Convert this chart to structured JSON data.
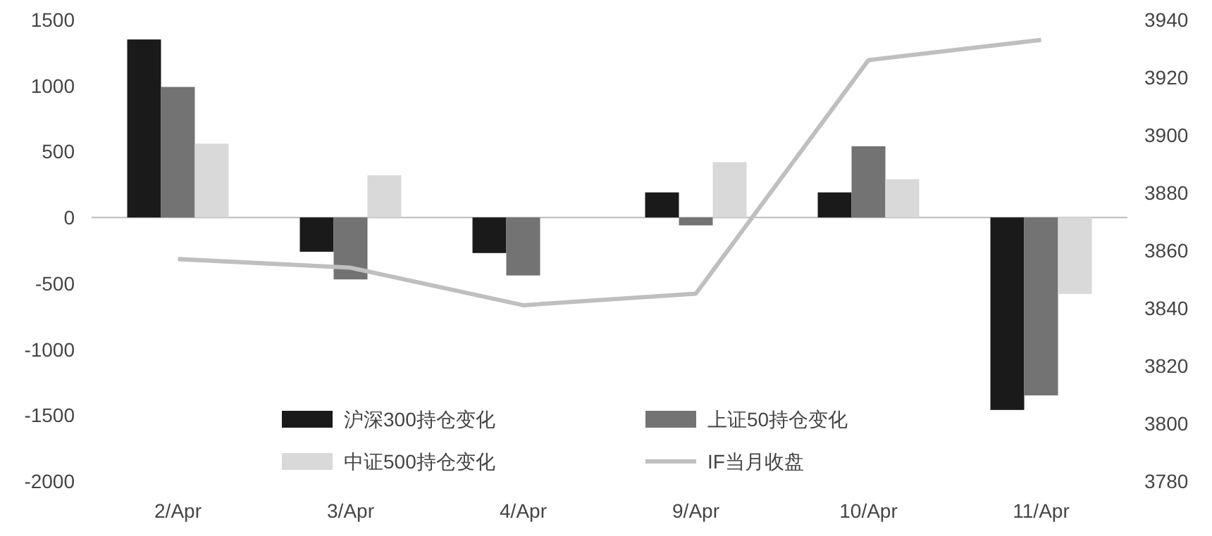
{
  "chart_data": {
    "type": "bar",
    "categories": [
      "2/Apr",
      "3/Apr",
      "4/Apr",
      "9/Apr",
      "10/Apr",
      "11/Apr"
    ],
    "series": [
      {
        "name": "沪深300持仓变化",
        "color": "#1a1a1a",
        "values": [
          1350,
          -260,
          -270,
          190,
          190,
          -1460
        ]
      },
      {
        "name": "上证50持仓变化",
        "color": "#737373",
        "values": [
          990,
          -470,
          -440,
          -60,
          540,
          -1350
        ]
      },
      {
        "name": "中证500持仓变化",
        "color": "#d9d9d9",
        "values": [
          560,
          320,
          0,
          420,
          290,
          -580
        ]
      },
      {
        "name": "IF当月收盘",
        "color": "#bfbfbf",
        "type": "line",
        "axis": "y2",
        "values": [
          3857,
          3854,
          3841,
          3845,
          3926,
          3933
        ]
      }
    ],
    "ylim": [
      -2000,
      1500
    ],
    "yticks": [
      -2000,
      -1500,
      -1000,
      -500,
      0,
      500,
      1000,
      1500
    ],
    "y2lim": [
      3780,
      3940
    ],
    "y2ticks": [
      3780,
      3800,
      3820,
      3840,
      3860,
      3880,
      3900,
      3920,
      3940
    ],
    "legend": "bottom"
  }
}
